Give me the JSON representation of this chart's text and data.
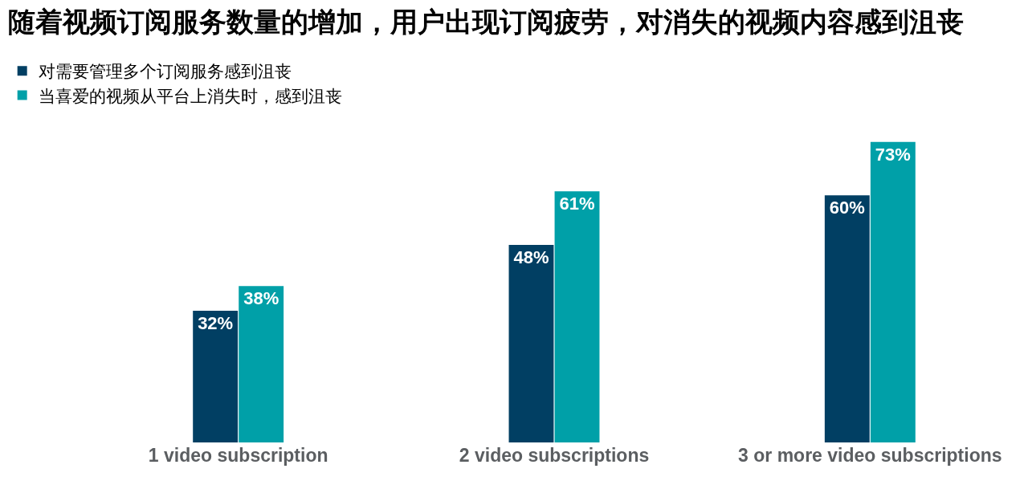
{
  "chart_data": {
    "type": "bar",
    "title": "随着视频订阅服务数量的增加，用户出现订阅疲劳，对消失的视频内容感到沮丧",
    "categories": [
      "1 video subscription",
      "2 video subscriptions",
      "3 or more video subscriptions"
    ],
    "series": [
      {
        "name": "对需要管理多个订阅服务感到沮丧",
        "color": "#013f63",
        "values": [
          32,
          48,
          60
        ],
        "value_labels": [
          "32%",
          "48%",
          "60%"
        ]
      },
      {
        "name": "当喜爱的视频从平台上消失时，感到沮丧",
        "color": "#00a0a8",
        "values": [
          38,
          61,
          73
        ],
        "value_labels": [
          "38%",
          "61%",
          "73%"
        ]
      }
    ],
    "legend": "top left",
    "grid": false,
    "tick_labels": "x"
  }
}
